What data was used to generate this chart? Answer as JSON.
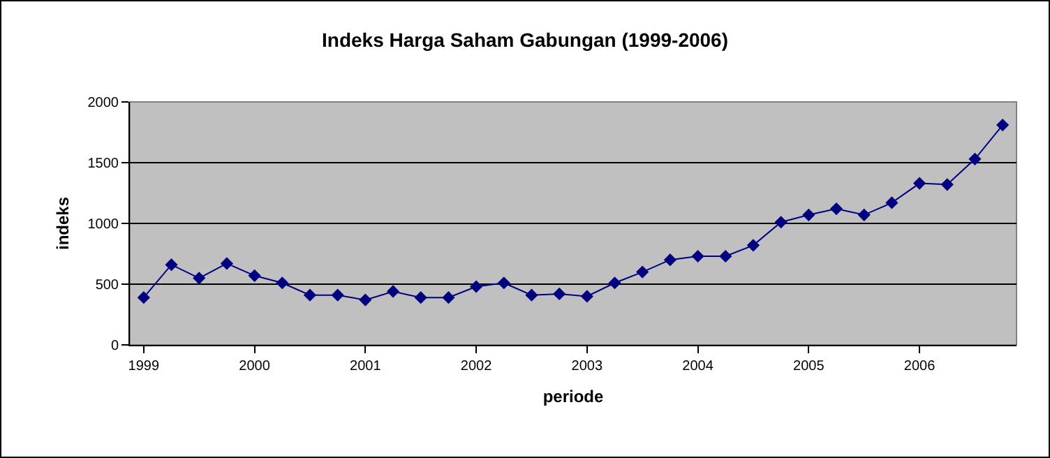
{
  "chart_data": {
    "type": "line",
    "title": "Indeks Harga Saham Gabungan (1999-2006)",
    "xlabel": "periode",
    "ylabel": "indeks",
    "categories": [
      "1999",
      null,
      null,
      null,
      "2000",
      null,
      null,
      null,
      "2001",
      null,
      null,
      null,
      "2002",
      null,
      null,
      null,
      "2003",
      null,
      null,
      null,
      "2004",
      null,
      null,
      null,
      "2005",
      null,
      null,
      null,
      "2006",
      null,
      null,
      null
    ],
    "series": [
      {
        "color": "#000080",
        "values": [
          390,
          660,
          550,
          670,
          570,
          510,
          410,
          410,
          370,
          440,
          390,
          390,
          480,
          510,
          410,
          420,
          400,
          510,
          600,
          700,
          730,
          730,
          820,
          1010,
          1070,
          1120,
          1070,
          1170,
          1330,
          1320,
          1530,
          1810
        ]
      }
    ],
    "ylim": [
      0,
      2000
    ],
    "yticks": [
      0,
      500,
      1000,
      1500,
      2000
    ],
    "grid": "y",
    "marker": "diamond",
    "line_style": "solid"
  }
}
